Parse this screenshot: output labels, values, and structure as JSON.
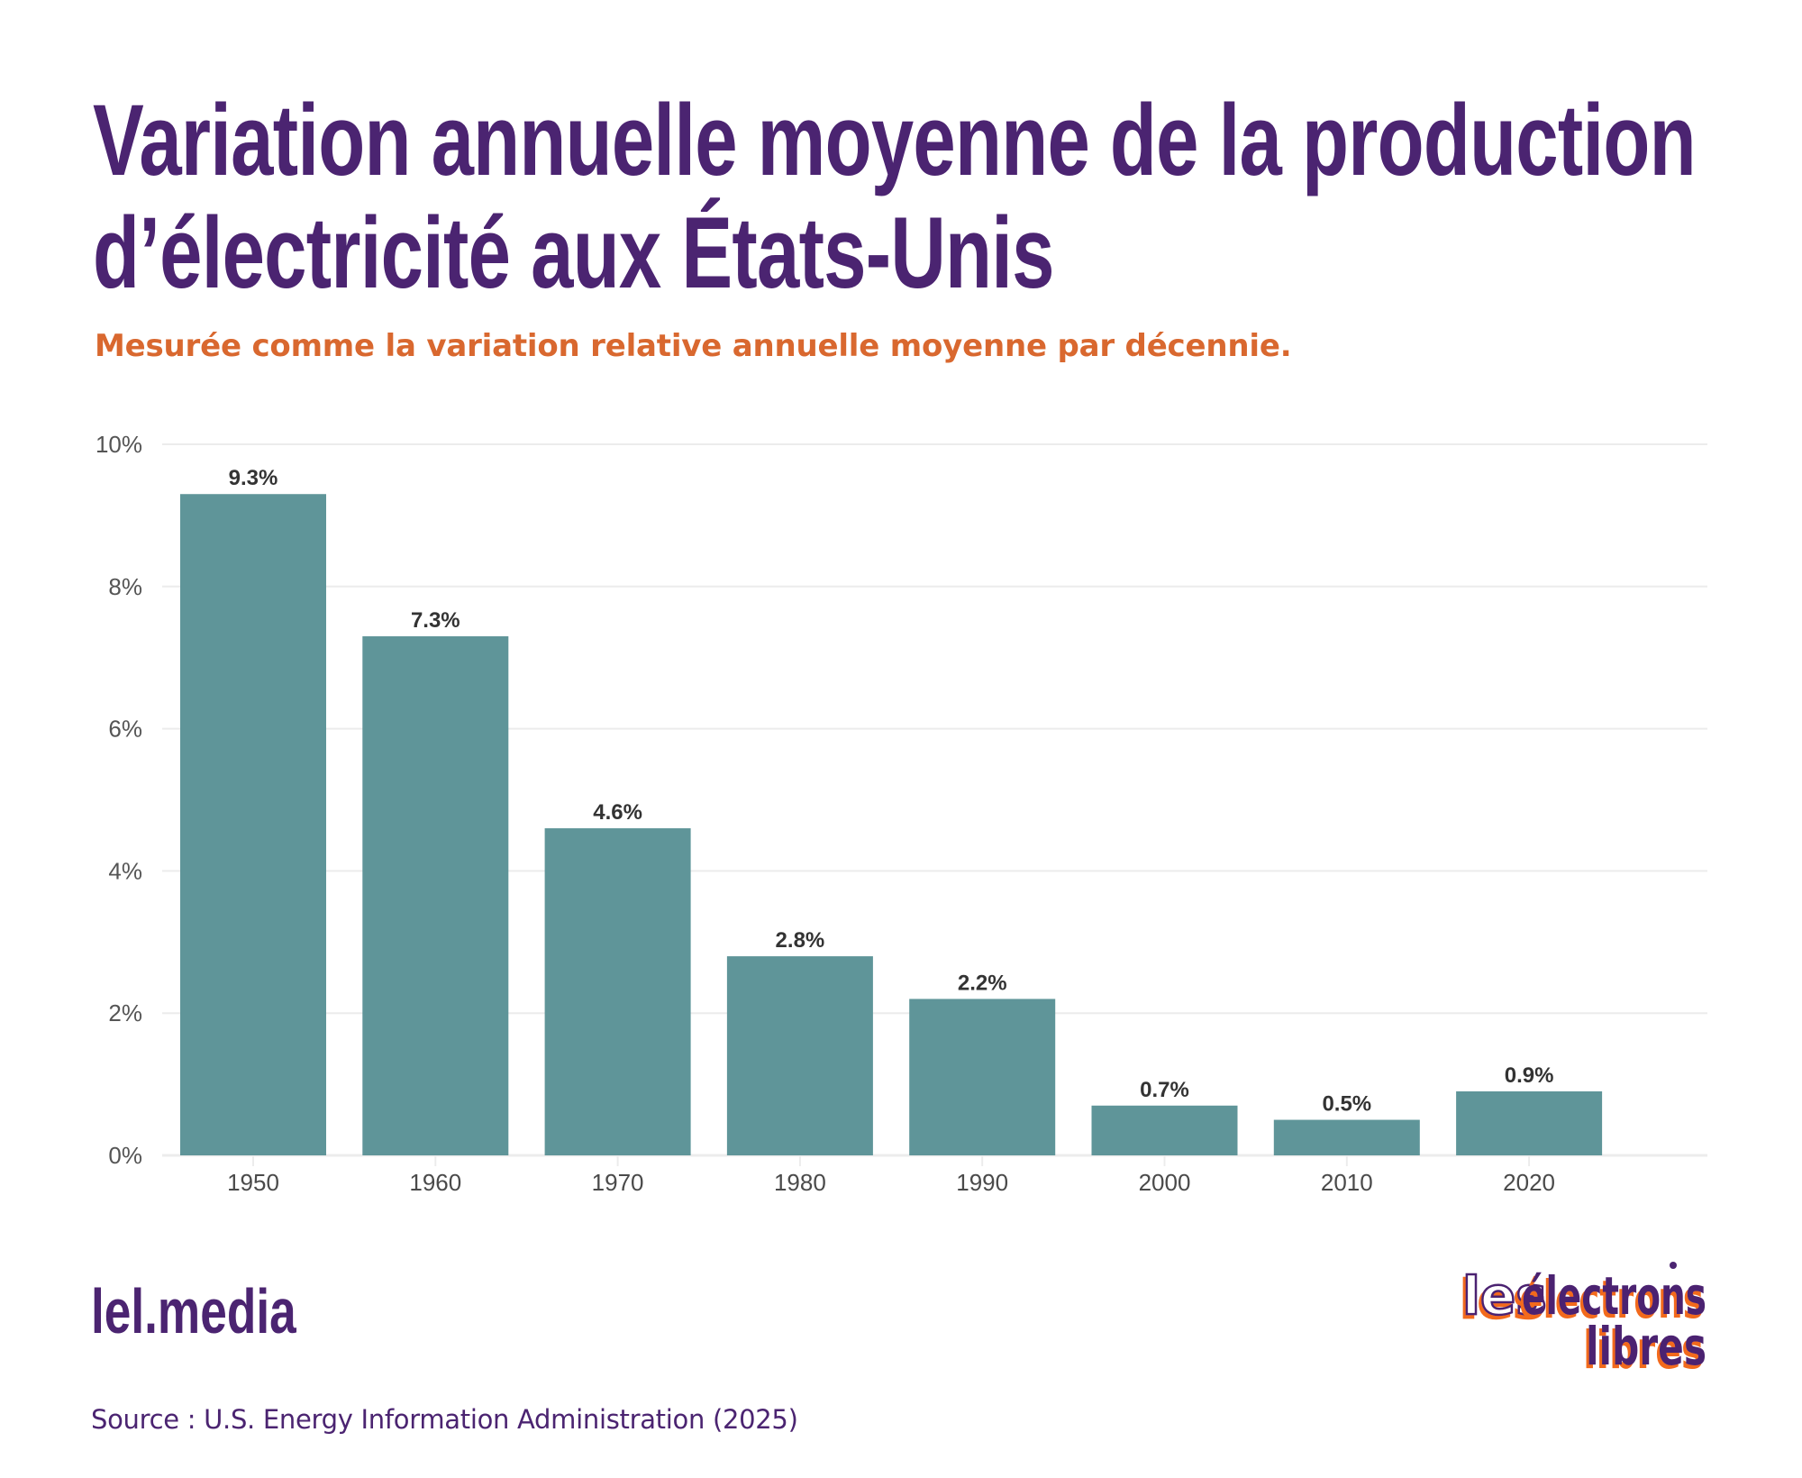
{
  "header": {
    "title_line1": "Variation annuelle moyenne de la production",
    "title_line2": "d’électricité aux États-Unis",
    "subtitle": "Mesurée comme la variation relative annuelle moyenne par décennie."
  },
  "footer": {
    "brand": "lel.media",
    "source": "Source : U.S. Energy Information Administration (2025)",
    "logo_line1_a": "les",
    "logo_line1_b": "électrons",
    "logo_line2": "libres"
  },
  "colors": {
    "title": "#4b2471",
    "subtitle": "#d9682f",
    "bar": "#5a9296",
    "grid": "#ececec",
    "logo_shadow": "#f26a1b"
  },
  "chart_data": {
    "type": "bar",
    "title": "Variation annuelle moyenne de la production d’électricité aux États-Unis",
    "subtitle": "Mesurée comme la variation relative annuelle moyenne par décennie.",
    "xlabel": "",
    "ylabel": "",
    "categories": [
      "1950",
      "1960",
      "1970",
      "1980",
      "1990",
      "2000",
      "2010",
      "2020"
    ],
    "values": [
      9.3,
      7.3,
      4.6,
      2.8,
      2.2,
      0.7,
      0.5,
      0.9
    ],
    "data_labels": [
      "9.3%",
      "7.3%",
      "4.6%",
      "2.8%",
      "2.2%",
      "0.7%",
      "0.5%",
      "0.9%"
    ],
    "ylim": [
      0,
      10
    ],
    "yticks": [
      0,
      2,
      4,
      6,
      8,
      10
    ],
    "ytick_labels": [
      "0%",
      "2%",
      "4%",
      "6%",
      "8%",
      "10%"
    ],
    "grid": true,
    "legend": "none"
  }
}
